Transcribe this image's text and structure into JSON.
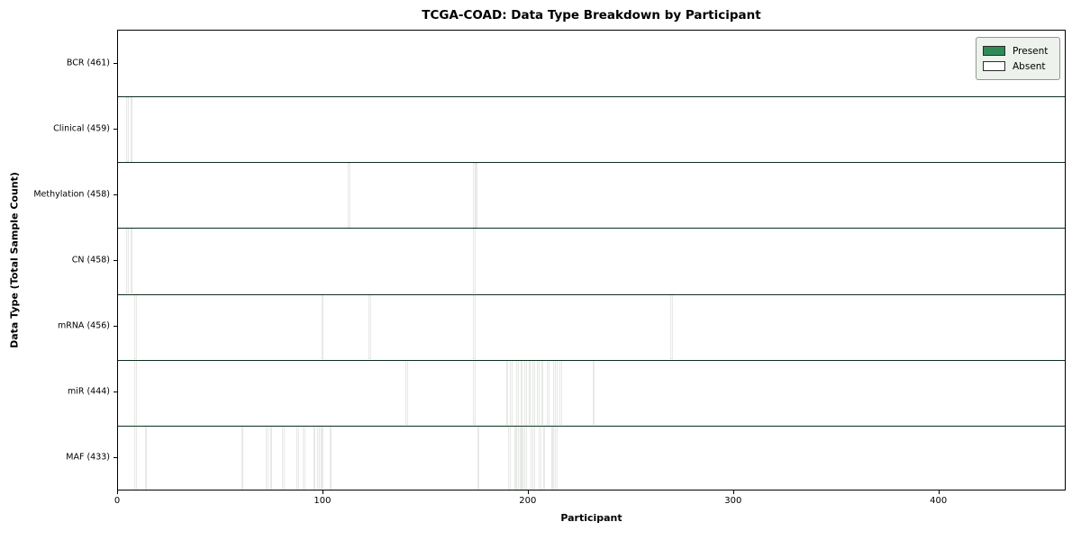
{
  "colors": {
    "present_fill": "#2e8355",
    "cell_edge": "#1b4f33",
    "absent_fill": "#fbfbfb",
    "row_divider": "#0d2e1d",
    "axis_frame": "#000000",
    "legend_present_swatch": "#2e8b57",
    "legend_absent_swatch": "#ffffff"
  },
  "chart_data": {
    "type": "heatmap",
    "title": "TCGA-COAD: Data Type Breakdown by Participant",
    "xlabel": "Participant",
    "ylabel": "Data Type (Total Sample Count)",
    "legend": [
      "Present",
      "Absent"
    ],
    "legend_position": "upper right",
    "grid": false,
    "x_ticks": [
      0,
      100,
      200,
      300,
      400
    ],
    "xlim": [
      0,
      462
    ],
    "n_participants": 461,
    "cell_states": {
      "present": 1,
      "absent": 0
    },
    "rows": [
      {
        "label": "BCR (461)",
        "data_type": "BCR",
        "present_count": 461,
        "absent_participants": []
      },
      {
        "label": "Clinical (459)",
        "data_type": "Clinical",
        "present_count": 459,
        "absent_participants": [
          4,
          6
        ]
      },
      {
        "label": "Methylation (458)",
        "data_type": "Methylation",
        "present_count": 458,
        "absent_participants": [
          112,
          173,
          174
        ]
      },
      {
        "label": "CN (458)",
        "data_type": "CN",
        "present_count": 458,
        "absent_participants": [
          4,
          6,
          173
        ]
      },
      {
        "label": "mRNA (456)",
        "data_type": "mRNA",
        "present_count": 456,
        "absent_participants": [
          8,
          99,
          122,
          173,
          269
        ]
      },
      {
        "label": "miR (444)",
        "data_type": "miR",
        "present_count": 444,
        "absent_participants": [
          8,
          140,
          173,
          189,
          191,
          194,
          196,
          198,
          200,
          202,
          204,
          206,
          209,
          212,
          213,
          215,
          231
        ]
      },
      {
        "label": "MAF (433)",
        "data_type": "MAF",
        "present_count": 433,
        "absent_participants": [
          8,
          13,
          60,
          72,
          74,
          80,
          87,
          90,
          95,
          97,
          98,
          99,
          103,
          175,
          190,
          193,
          194,
          195,
          196,
          197,
          198,
          201,
          202,
          205,
          207,
          211,
          212,
          213
        ]
      }
    ]
  }
}
